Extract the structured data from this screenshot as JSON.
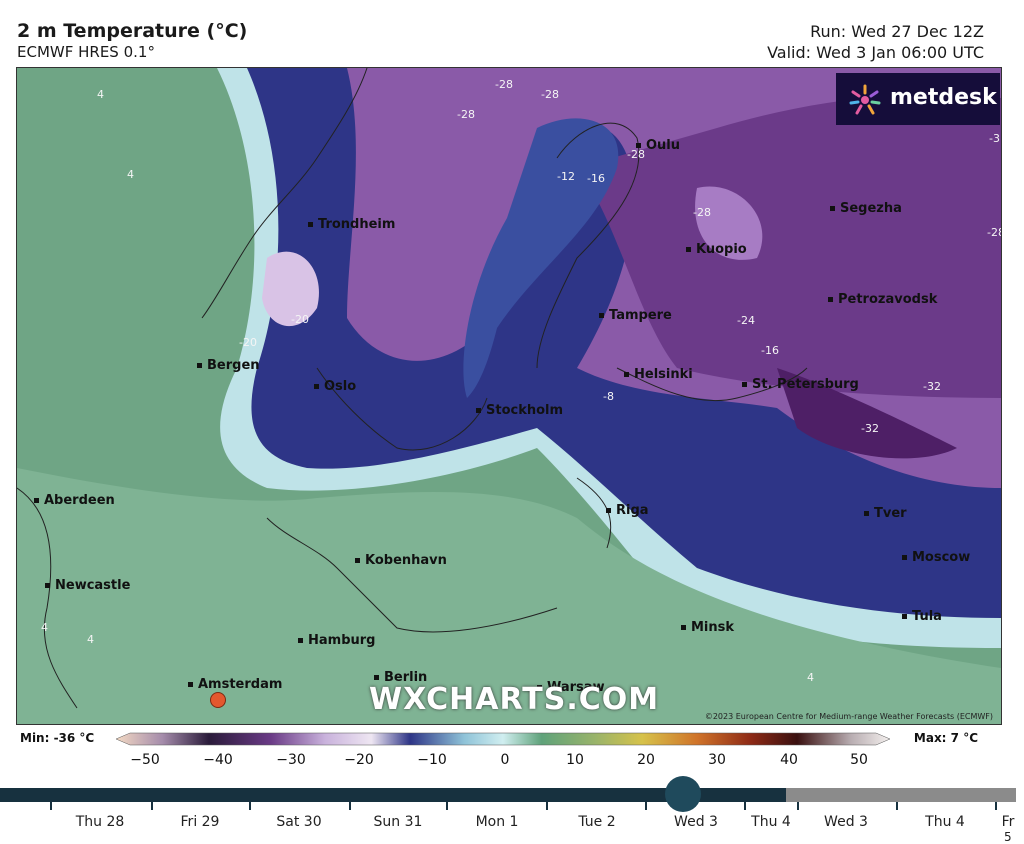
{
  "header": {
    "title": "2 m Temperature (°C)",
    "model": "ECMWF HRES 0.1°",
    "run": "Run: Wed 27 Dec 12Z",
    "valid": "Valid: Wed 3 Jan 06:00 UTC"
  },
  "brand": {
    "name": "metdesk",
    "watermark": "WXCHARTS.COM"
  },
  "copyright": "©2023 European Centre for Medium-range Weather Forecasts (ECMWF)",
  "cities": [
    "Oulu",
    "Segezha",
    "Trondheim",
    "Kuopio",
    "Petrozavodsk",
    "Tampere",
    "Bergen",
    "Helsinki",
    "St. Petersburg",
    "Oslo",
    "Stockholm",
    "Aberdeen",
    "Riga",
    "Tver",
    "Kobenhavn",
    "Moscow",
    "Newcastle",
    "Tula",
    "Minsk",
    "Hamburg",
    "Amsterdam",
    "Berlin",
    "Warsaw"
  ],
  "contour_labels": [
    "-28",
    "-28",
    "-28",
    "-28",
    "-12",
    "-16",
    "-28",
    "-20",
    "-20",
    "-28",
    "-24",
    "-16",
    "-8",
    "-32",
    "-32",
    "4",
    "4",
    "4",
    "4",
    "4",
    "-3"
  ],
  "colorbar": {
    "min_label": "Min: -36 °C",
    "max_label": "Max: 7 °C",
    "ticks": [
      "−50",
      "−40",
      "−30",
      "−20",
      "−10",
      "0",
      "10",
      "20",
      "30",
      "40",
      "50"
    ]
  },
  "timeline": {
    "labels": [
      "Thu 28",
      "Fri 29",
      "Sat 30",
      "Sun 31",
      "Mon 1",
      "Tue 2",
      "Wed 3",
      "Thu 4",
      "Wed 3",
      "Thu 4",
      "Fr"
    ],
    "trailing": "5",
    "selected": "Wed 3"
  },
  "colors": {
    "sea": "#6fa585",
    "cold": "#2a2f7a",
    "verycold": "#6a3a86",
    "marker": "#e4572e"
  }
}
